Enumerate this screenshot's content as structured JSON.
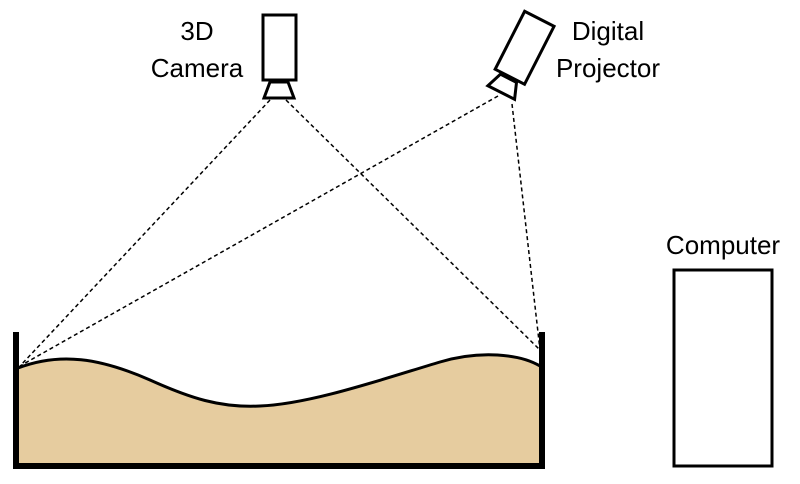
{
  "labels": {
    "camera_line1": "3D",
    "camera_line2": "Camera",
    "projector_line1": "Digital",
    "projector_line2": "Projector",
    "computer": "Computer"
  },
  "colors": {
    "sand": "#e6cc9f",
    "outline": "#000000",
    "background": "#ffffff"
  },
  "icons": {
    "camera": "3d-camera-icon",
    "projector": "digital-projector-icon",
    "computer": "computer-icon",
    "sandbox": "sandbox-container"
  }
}
